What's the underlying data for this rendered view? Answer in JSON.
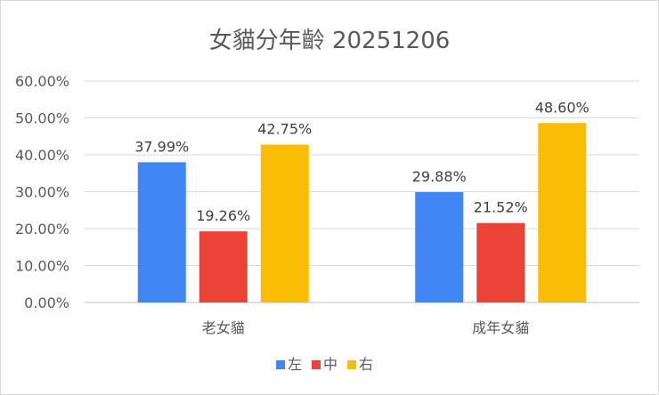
{
  "chart_data": {
    "type": "bar",
    "title": "女貓分年齡 20251206",
    "categories": [
      "老女貓",
      "成年女貓"
    ],
    "series": [
      {
        "name": "左",
        "color": "#4285F4",
        "values": [
          37.99,
          29.88
        ]
      },
      {
        "name": "中",
        "color": "#EA4335",
        "values": [
          19.26,
          21.52
        ]
      },
      {
        "name": "右",
        "color": "#FBBC04",
        "values": [
          42.75,
          48.6
        ]
      }
    ],
    "value_format": "percent_2dp",
    "ylim": [
      0,
      60
    ],
    "y_ticks": [
      "0.00%",
      "10.00%",
      "20.00%",
      "30.00%",
      "40.00%",
      "50.00%",
      "60.00%"
    ],
    "grid": true,
    "legend": "bottom",
    "xlabel": "",
    "ylabel": ""
  }
}
